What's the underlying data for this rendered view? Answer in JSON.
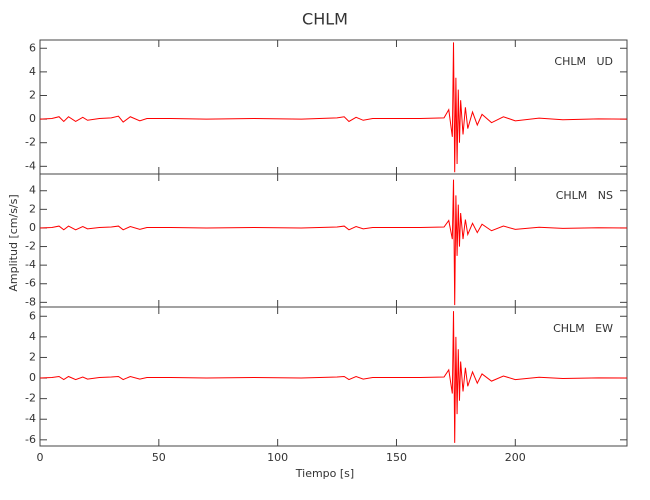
{
  "chart_data": [
    {
      "type": "line",
      "title": "CHLM",
      "annotation": "CHLM   UD",
      "xlim": [
        0,
        247
      ],
      "xticks": [
        0,
        50,
        100,
        150,
        200
      ],
      "ylim": [
        -4.65,
        6.7
      ],
      "yticks": [
        -4,
        -2,
        0,
        2,
        4,
        6
      ],
      "x": [
        0,
        5,
        8,
        10,
        12,
        15,
        18,
        20,
        25,
        30,
        33,
        35,
        38,
        42,
        45,
        55,
        70,
        90,
        110,
        125,
        128,
        130,
        133,
        136,
        140,
        160,
        170,
        172,
        173.5,
        174,
        174.5,
        175,
        175.5,
        176,
        176.5,
        177,
        178,
        179,
        180,
        182,
        184,
        186,
        190,
        195,
        200,
        210,
        220,
        235,
        247
      ],
      "series": [
        {
          "color": "#ff0000",
          "values": [
            0,
            0.05,
            0.2,
            -0.2,
            0.2,
            -0.2,
            0.15,
            -0.1,
            0.05,
            0.1,
            0.25,
            -0.25,
            0.2,
            -0.15,
            0.05,
            0.05,
            0,
            0.05,
            0,
            0.1,
            0.2,
            -0.2,
            0.15,
            -0.1,
            0.05,
            0.05,
            0.1,
            0.8,
            -1.5,
            6.5,
            -4.5,
            3.5,
            -3.8,
            2.5,
            -2,
            1.6,
            -1.3,
            1,
            -0.8,
            0.6,
            -0.5,
            0.4,
            -0.3,
            0.2,
            -0.15,
            0.08,
            -0.05,
            0.02,
            0
          ]
        }
      ]
    },
    {
      "type": "line",
      "annotation": "CHLM   NS",
      "y_label": "Amplitud [cm/s/s]",
      "xlim": [
        0,
        247
      ],
      "xticks": [
        0,
        50,
        100,
        150,
        200
      ],
      "ylim": [
        -8.5,
        5.8
      ],
      "yticks": [
        -8,
        -6,
        -4,
        -2,
        0,
        2,
        4
      ],
      "x": [
        0,
        5,
        8,
        10,
        12,
        15,
        18,
        20,
        25,
        30,
        33,
        35,
        38,
        42,
        45,
        55,
        70,
        90,
        110,
        125,
        128,
        130,
        133,
        136,
        140,
        160,
        170,
        172,
        173.5,
        174,
        174.5,
        175,
        175.5,
        176,
        176.5,
        177,
        178,
        179,
        180,
        182,
        184,
        186,
        190,
        195,
        200,
        210,
        220,
        235,
        247
      ],
      "series": [
        {
          "color": "#ff0000",
          "values": [
            0,
            0.05,
            0.2,
            -0.2,
            0.2,
            -0.2,
            0.15,
            -0.1,
            0.05,
            0.1,
            0.2,
            -0.2,
            0.15,
            -0.15,
            0.05,
            0.05,
            0,
            0.05,
            0,
            0.1,
            0.2,
            -0.2,
            0.15,
            -0.1,
            0.05,
            0.05,
            0.1,
            0.8,
            -1.2,
            5.2,
            -8.3,
            3.5,
            -3,
            2.5,
            -2,
            1.6,
            -1.2,
            0.9,
            -0.7,
            0.5,
            -0.5,
            0.4,
            -0.3,
            0.2,
            -0.15,
            0.08,
            -0.05,
            0.02,
            0
          ]
        }
      ]
    },
    {
      "type": "line",
      "annotation": "CHLM   EW",
      "x_label": "Tiempo [s]",
      "xlim": [
        0,
        247
      ],
      "xticks": [
        0,
        50,
        100,
        150,
        200
      ],
      "ylim": [
        -6.6,
        6.9
      ],
      "yticks": [
        -6,
        -4,
        -2,
        0,
        2,
        4,
        6
      ],
      "x": [
        0,
        5,
        8,
        10,
        12,
        15,
        18,
        20,
        25,
        30,
        33,
        35,
        38,
        42,
        45,
        55,
        70,
        90,
        110,
        125,
        128,
        130,
        133,
        136,
        140,
        160,
        170,
        172,
        173.5,
        174,
        174.5,
        175,
        175.5,
        176,
        176.5,
        177,
        178,
        179,
        180,
        182,
        184,
        186,
        190,
        195,
        200,
        210,
        220,
        235,
        247
      ],
      "series": [
        {
          "color": "#ff0000",
          "values": [
            0,
            0.05,
            0.15,
            -0.15,
            0.15,
            -0.15,
            0.1,
            -0.1,
            0.05,
            0.1,
            0.15,
            -0.15,
            0.15,
            -0.1,
            0.05,
            0.05,
            0,
            0.05,
            0,
            0.1,
            0.15,
            -0.15,
            0.15,
            -0.1,
            0.05,
            0.05,
            0.1,
            0.8,
            -1.5,
            6.5,
            -6.3,
            4,
            -3.5,
            2.8,
            -2.2,
            1.6,
            -1.3,
            1,
            -0.8,
            0.6,
            -0.5,
            0.4,
            -0.3,
            0.2,
            -0.15,
            0.08,
            -0.05,
            0.02,
            0
          ]
        }
      ]
    }
  ]
}
